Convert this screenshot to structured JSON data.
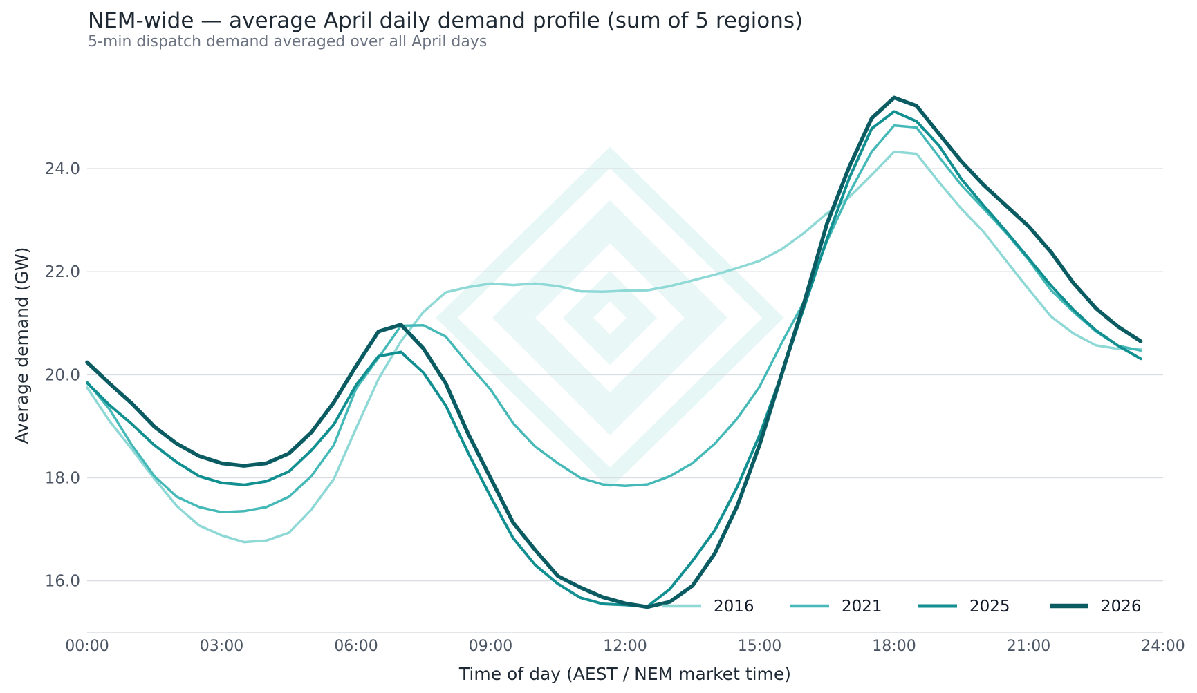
{
  "title": "NEM-wide — average April daily demand profile (sum of 5 regions)",
  "subtitle": "5-min dispatch demand averaged over all April days",
  "chart_data": {
    "type": "line",
    "title": "NEM-wide — average April daily demand profile (sum of 5 regions)",
    "subtitle": "5-min dispatch demand averaged over all April days",
    "xlabel": "Time of day (AEST / NEM market time)",
    "ylabel": "Average demand (GW)",
    "xlim": [
      0,
      24
    ],
    "ylim": [
      15.0,
      25.8
    ],
    "x_ticks": [
      0,
      3,
      6,
      9,
      12,
      15,
      18,
      21,
      24
    ],
    "x_tick_labels": [
      "00:00",
      "03:00",
      "06:00",
      "09:00",
      "12:00",
      "15:00",
      "18:00",
      "21:00",
      "24:00"
    ],
    "y_ticks": [
      16,
      18,
      20,
      22,
      24
    ],
    "y_tick_labels": [
      "16.0",
      "18.0",
      "20.0",
      "22.0",
      "24.0"
    ],
    "grid": "horizontal",
    "legend_position": "bottom-right",
    "x": [
      0,
      0.5,
      1,
      1.5,
      2,
      2.5,
      3,
      3.5,
      4,
      4.5,
      5,
      5.5,
      6,
      6.5,
      7,
      7.5,
      8,
      8.5,
      9,
      9.5,
      10,
      10.5,
      11,
      11.5,
      12,
      12.5,
      13,
      13.5,
      14,
      14.5,
      15,
      15.5,
      16,
      16.5,
      17,
      17.5,
      18,
      18.5,
      19,
      19.5,
      20,
      20.5,
      21,
      21.5,
      22,
      22.5,
      23,
      23.5
    ],
    "series": [
      {
        "name": "2016",
        "color": "#8ed8d6",
        "width": 3.5,
        "values": [
          19.75,
          19.1,
          18.55,
          17.98,
          17.45,
          17.07,
          16.88,
          16.75,
          16.78,
          16.93,
          17.38,
          17.97,
          18.96,
          19.92,
          20.65,
          21.22,
          21.6,
          21.7,
          21.77,
          21.74,
          21.77,
          21.72,
          21.62,
          21.61,
          21.63,
          21.64,
          21.72,
          21.83,
          21.94,
          22.07,
          22.21,
          22.44,
          22.76,
          23.13,
          23.45,
          23.88,
          24.33,
          24.29,
          23.74,
          23.22,
          22.77,
          22.21,
          21.66,
          21.13,
          20.8,
          20.57,
          20.5,
          20.5
        ]
      },
      {
        "name": "2021",
        "color": "#45b9b7",
        "width": 3.5,
        "values": [
          19.86,
          19.33,
          18.63,
          18.03,
          17.63,
          17.43,
          17.33,
          17.35,
          17.43,
          17.63,
          18.03,
          18.63,
          19.73,
          20.33,
          20.95,
          20.96,
          20.74,
          20.21,
          19.71,
          19.06,
          18.6,
          18.28,
          18.0,
          17.87,
          17.84,
          17.87,
          18.03,
          18.28,
          18.66,
          19.15,
          19.77,
          20.63,
          21.43,
          22.59,
          23.53,
          24.33,
          24.84,
          24.8,
          24.23,
          23.68,
          23.22,
          22.75,
          22.23,
          21.64,
          21.22,
          20.84,
          20.56,
          20.47
        ]
      },
      {
        "name": "2025",
        "color": "#128f91",
        "width": 4,
        "values": [
          19.84,
          19.41,
          19.04,
          18.63,
          18.3,
          18.03,
          17.9,
          17.86,
          17.93,
          18.12,
          18.53,
          19.03,
          19.8,
          20.36,
          20.44,
          20.04,
          19.4,
          18.48,
          17.63,
          16.83,
          16.3,
          15.94,
          15.67,
          15.55,
          15.53,
          15.5,
          15.84,
          16.38,
          16.98,
          17.82,
          18.83,
          20.03,
          21.33,
          22.63,
          23.82,
          24.78,
          25.11,
          24.92,
          24.45,
          23.8,
          23.28,
          22.78,
          22.26,
          21.73,
          21.26,
          20.86,
          20.56,
          20.31
        ]
      },
      {
        "name": "2026",
        "color": "#0b5c62",
        "width": 5.5,
        "values": [
          20.24,
          19.83,
          19.44,
          18.99,
          18.66,
          18.42,
          18.28,
          18.23,
          18.28,
          18.47,
          18.88,
          19.46,
          20.17,
          20.84,
          20.97,
          20.51,
          19.83,
          18.85,
          17.99,
          17.13,
          16.59,
          16.09,
          15.87,
          15.68,
          15.56,
          15.49,
          15.59,
          15.9,
          16.53,
          17.45,
          18.64,
          20.03,
          21.42,
          22.93,
          24.04,
          24.98,
          25.38,
          25.22,
          24.68,
          24.14,
          23.68,
          23.28,
          22.88,
          22.38,
          21.78,
          21.29,
          20.93,
          20.65
        ]
      }
    ]
  }
}
